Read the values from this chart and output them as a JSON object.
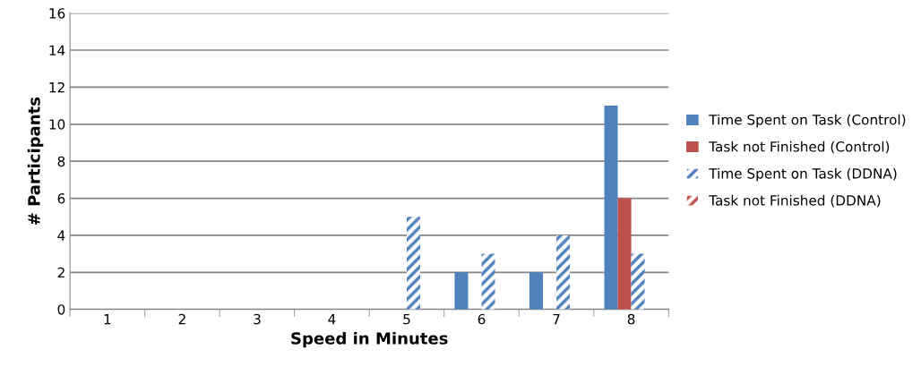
{
  "chart_data": {
    "type": "bar",
    "xlabel": "Speed in Minutes",
    "ylabel": "# Participants",
    "categories": [
      "1",
      "2",
      "3",
      "4",
      "5",
      "6",
      "7",
      "8"
    ],
    "series": [
      {
        "name": "Time Spent on Task (Control)",
        "color": "#4f81bd",
        "values": [
          0,
          0,
          0,
          0,
          0,
          2,
          2,
          11
        ]
      },
      {
        "name": "Task not Finished (Control)",
        "color": "#c0504d",
        "values": [
          0,
          0,
          0,
          0,
          0,
          0,
          0,
          6
        ]
      },
      {
        "name": "Time Spent on Task (DDNA)",
        "color": "#4f81bd",
        "values": [
          0,
          0,
          0,
          0,
          5,
          3,
          4,
          3
        ]
      },
      {
        "name": "Task not Finished (DDNA)",
        "color": "#c0504d",
        "values": [
          0,
          0,
          0,
          0,
          0,
          0,
          0,
          0
        ]
      }
    ],
    "ylim": [
      0,
      16
    ],
    "yticks": [
      0,
      2,
      4,
      6,
      8,
      10,
      12,
      14,
      16
    ],
    "grid": "y",
    "legend": "right"
  }
}
